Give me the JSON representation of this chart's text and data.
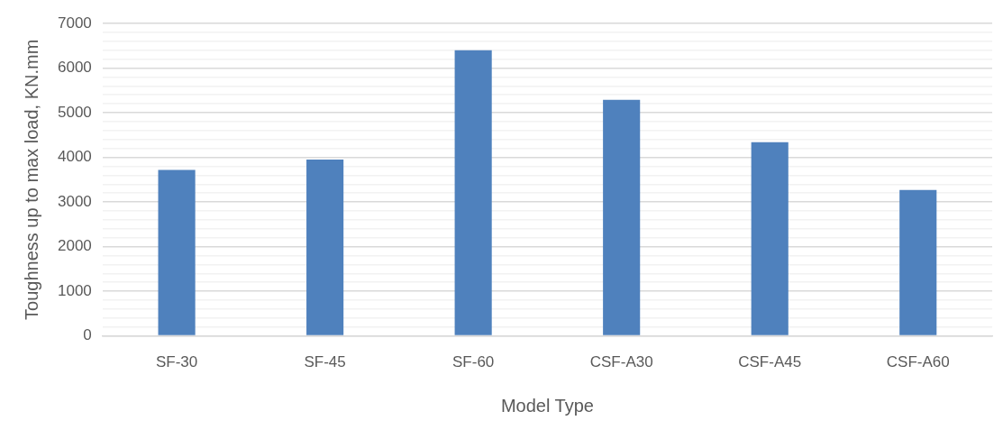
{
  "chart_data": {
    "type": "bar",
    "xlabel": "Model Type",
    "ylabel": "Toughness up to max load, KN.mm",
    "categories": [
      "SF-30",
      "SF-45",
      "SF-60",
      "CSF-A30",
      "CSF-A45",
      "CSF-A60"
    ],
    "values": [
      3720,
      3950,
      6400,
      5290,
      4340,
      3270
    ],
    "color": "#4f81bd",
    "ylim": [
      0,
      7000
    ],
    "yticks": [
      0,
      {
        "value": 200,
        "label": null
      },
      {
        "value": 400,
        "label": null
      },
      {
        "value": 600,
        "label": null
      },
      {
        "value": 800,
        "label": null
      },
      1000,
      {
        "value": 1200,
        "label": null
      },
      {
        "value": 1400,
        "label": null
      },
      {
        "value": 1600,
        "label": null
      },
      {
        "value": 1800,
        "label": null
      },
      2000,
      {
        "value": 2200,
        "label": null
      },
      {
        "value": 2400,
        "label": null
      },
      {
        "value": 2600,
        "label": null
      },
      {
        "value": 2800,
        "label": null
      },
      3000,
      {
        "value": 3200,
        "label": null
      },
      {
        "value": 3400,
        "label": null
      },
      {
        "value": 3600,
        "label": null
      },
      {
        "value": 3800,
        "label": null
      },
      4000,
      {
        "value": 4200,
        "label": null
      },
      {
        "value": 4400,
        "label": null
      },
      {
        "value": 4600,
        "label": null
      },
      {
        "value": 4800,
        "label": null
      },
      5000,
      {
        "value": 5200,
        "label": null
      },
      {
        "value": 5400,
        "label": null
      },
      {
        "value": 5600,
        "label": null
      },
      {
        "value": 5800,
        "label": null
      },
      6000,
      {
        "value": 6200,
        "label": null
      },
      {
        "value": 6400,
        "label": null
      },
      {
        "value": 6600,
        "label": null
      },
      {
        "value": 6800,
        "label": null
      },
      7000
    ],
    "grid": "y",
    "legend": false
  }
}
